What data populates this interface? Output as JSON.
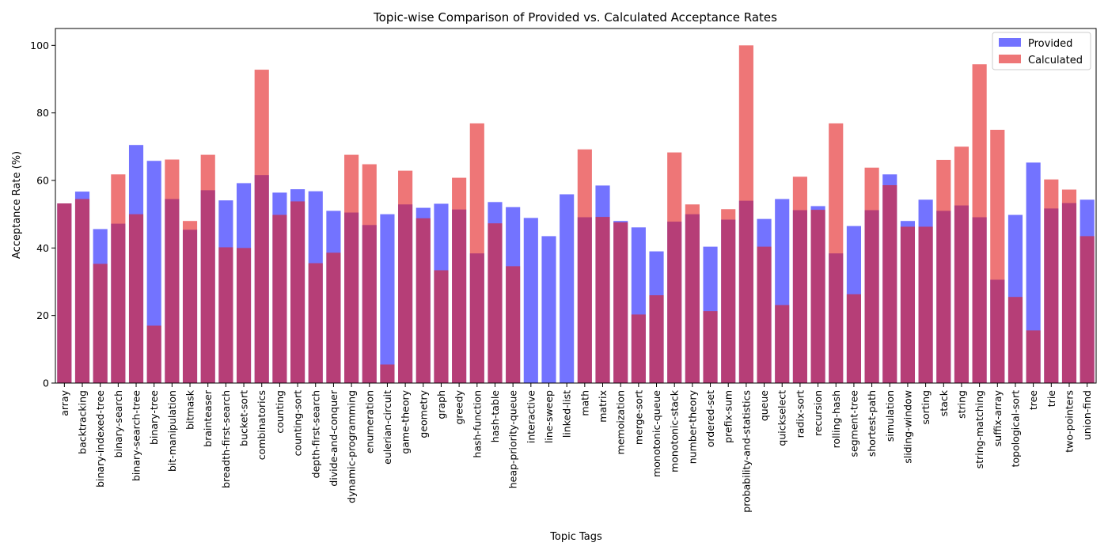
{
  "chart_data": {
    "type": "bar",
    "title": "Topic-wise Comparison of Provided vs. Calculated Acceptance Rates",
    "xlabel": "Topic Tags",
    "ylabel": "Acceptance Rate (%)",
    "ylim": [
      0,
      105
    ],
    "yticks": [
      0,
      20,
      40,
      60,
      80,
      100
    ],
    "legend_position": "top-right",
    "categories": [
      "array",
      "backtracking",
      "binary-indexed-tree",
      "binary-search",
      "binary-search-tree",
      "binary-tree",
      "bit-manipulation",
      "bitmask",
      "brainteaser",
      "breadth-first-search",
      "bucket-sort",
      "combinatorics",
      "counting",
      "counting-sort",
      "depth-first-search",
      "divide-and-conquer",
      "dynamic-programming",
      "enumeration",
      "eulerian-circuit",
      "game-theory",
      "geometry",
      "graph",
      "greedy",
      "hash-function",
      "hash-table",
      "heap-priority-queue",
      "interactive",
      "line-sweep",
      "linked-list",
      "math",
      "matrix",
      "memoization",
      "merge-sort",
      "monotonic-queue",
      "monotonic-stack",
      "number-theory",
      "ordered-set",
      "prefix-sum",
      "probability-and-statistics",
      "queue",
      "quickselect",
      "radix-sort",
      "recursion",
      "rolling-hash",
      "segment-tree",
      "shortest-path",
      "simulation",
      "sliding-window",
      "sorting",
      "stack",
      "string",
      "string-matching",
      "suffix-array",
      "topological-sort",
      "tree",
      "trie",
      "two-pointers",
      "union-find"
    ],
    "series": [
      {
        "name": "Provided",
        "color": "#0000ff",
        "opacity": 0.55,
        "values": [
          53.2,
          56.7,
          45.6,
          47.2,
          70.5,
          65.8,
          54.5,
          45.4,
          57.1,
          54.1,
          59.2,
          61.6,
          56.4,
          57.4,
          56.8,
          51.0,
          50.5,
          46.8,
          50.0,
          52.9,
          51.9,
          53.1,
          51.4,
          38.4,
          53.6,
          52.1,
          48.9,
          43.5,
          55.9,
          49.1,
          58.5,
          48.0,
          46.1,
          39.0,
          47.8,
          50.0,
          40.4,
          48.4,
          54.0,
          48.6,
          54.5,
          51.2,
          52.4,
          38.4,
          46.5,
          51.2,
          61.8,
          48.0,
          54.3,
          51.0,
          52.6,
          49.1,
          30.6,
          49.8,
          65.3,
          51.7,
          53.3,
          54.3
        ]
      },
      {
        "name": "Calculated",
        "color": "#e31a1c",
        "opacity": 0.6,
        "values": [
          53.2,
          54.5,
          35.3,
          61.8,
          50.0,
          17.0,
          66.2,
          48.0,
          67.6,
          40.2,
          40.0,
          92.8,
          49.8,
          53.8,
          35.5,
          38.6,
          67.6,
          64.8,
          5.5,
          62.9,
          48.8,
          33.4,
          60.8,
          76.9,
          47.3,
          34.6,
          0,
          0,
          0,
          69.2,
          49.2,
          47.6,
          20.3,
          26.0,
          68.3,
          52.9,
          21.3,
          51.5,
          100.0,
          40.4,
          23.1,
          61.1,
          51.3,
          76.9,
          26.3,
          63.8,
          58.6,
          46.3,
          46.3,
          66.1,
          70.0,
          94.4,
          75.0,
          25.5,
          15.6,
          60.3,
          57.3,
          43.5
        ]
      }
    ]
  }
}
